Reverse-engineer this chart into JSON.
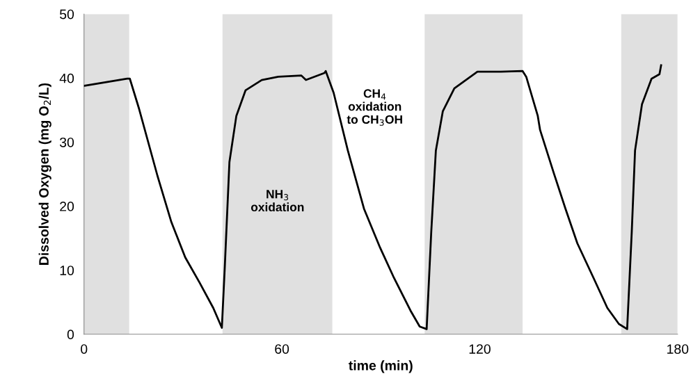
{
  "chart_data": {
    "type": "line",
    "xlabel": "time (min)",
    "ylabel": "Dissolved Oxygen (mg O$_{2}$/L)",
    "xlim": [
      0,
      180
    ],
    "xticks": [
      0,
      60,
      120,
      180
    ],
    "ylim": [
      0,
      50
    ],
    "yticks": [
      0,
      10,
      20,
      30,
      40,
      50
    ],
    "grid": false,
    "marker": "none",
    "line_style": "solid",
    "series": [
      {
        "color": "#000000",
        "x": [
          0.1,
          13.1,
          13.9,
          16.7,
          22.3,
          26.5,
          30.7,
          35.0,
          39.2,
          41.8,
          42.7,
          44.1,
          46.2,
          49.0,
          53.9,
          58.9,
          65.9,
          67.3,
          72.9,
          73.3,
          75.7,
          80.0,
          84.9,
          89.8,
          94.0,
          99.0,
          101.8,
          103.9,
          105.3,
          106.7,
          108.8,
          112.3,
          119.3,
          126.4,
          133.0,
          134.1,
          137.6,
          138.3,
          142.5,
          146.0,
          149.6,
          154.5,
          158.7,
          162.2,
          164.7,
          166.1,
          167.1,
          169.2,
          172.1,
          174.5,
          175.0
        ],
        "values": [
          38.8,
          39.9,
          39.9,
          35.2,
          24.7,
          17.5,
          12.0,
          8.1,
          4.1,
          1.0,
          10.6,
          26.9,
          34.1,
          38.1,
          39.7,
          40.2,
          40.4,
          39.7,
          40.8,
          41.1,
          37.7,
          28.7,
          19.6,
          13.5,
          8.8,
          3.7,
          1.2,
          0.8,
          16.0,
          28.7,
          34.8,
          38.4,
          41.0,
          41.0,
          41.1,
          40.2,
          34.1,
          31.9,
          25.1,
          19.6,
          14.2,
          8.8,
          4.1,
          1.6,
          0.8,
          16.0,
          28.7,
          35.9,
          39.9,
          40.6,
          42.0
        ]
      }
    ],
    "bands": [
      {
        "axis": "x",
        "from": 0,
        "to": 13.7,
        "color": "#e0e0e0"
      },
      {
        "axis": "x",
        "from": 42.0,
        "to": 75.3,
        "color": "#e0e0e0"
      },
      {
        "axis": "x",
        "from": 103.3,
        "to": 133.0,
        "color": "#e0e0e0"
      },
      {
        "axis": "x",
        "from": 162.9,
        "to": 180,
        "color": "#e0e0e0"
      }
    ],
    "annotations": [
      "NH$_{3}$\noxidation",
      "CH$_{4}$\noxidation\nto CH$_{3}$OH"
    ]
  }
}
